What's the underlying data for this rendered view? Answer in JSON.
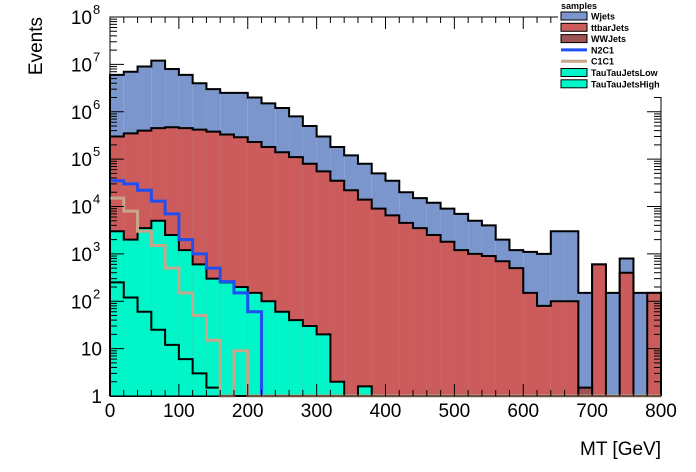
{
  "chart_data": {
    "type": "area",
    "xlabel": "MT [GeV]",
    "ylabel": "Events",
    "xlim": [
      0,
      800
    ],
    "ylim": [
      1,
      100000000
    ],
    "ylog": true,
    "x_ticks": [
      0,
      100,
      200,
      300,
      400,
      500,
      600,
      700,
      800
    ],
    "y_tick_labels": [
      {
        "v": 1,
        "base": "1",
        "exp": ""
      },
      {
        "v": 10,
        "base": "10",
        "exp": ""
      },
      {
        "v": 100,
        "base": "10",
        "exp": "2"
      },
      {
        "v": 1000,
        "base": "10",
        "exp": "3"
      },
      {
        "v": 10000,
        "base": "10",
        "exp": "4"
      },
      {
        "v": 100000,
        "base": "10",
        "exp": "5"
      },
      {
        "v": 1000000,
        "base": "10",
        "exp": "6"
      },
      {
        "v": 10000000,
        "base": "10",
        "exp": "7"
      },
      {
        "v": 100000000,
        "base": "10",
        "exp": "8"
      }
    ],
    "bin_edges": [
      0,
      20,
      40,
      60,
      80,
      100,
      120,
      140,
      160,
      180,
      200,
      220,
      240,
      260,
      280,
      300,
      320,
      340,
      360,
      380,
      400,
      420,
      440,
      460,
      480,
      500,
      520,
      540,
      560,
      580,
      600,
      620,
      640,
      660,
      680,
      700,
      720,
      740,
      760,
      780,
      800
    ],
    "stack_totals": [
      {
        "name": "Wjets",
        "color": "#7b96cc",
        "values": [
          6000000,
          7000000,
          9000000,
          12000000,
          8000000,
          6000000,
          4000000,
          3000000,
          2500000,
          2500000,
          2000000,
          1500000,
          1200000,
          800000,
          500000,
          300000,
          180000,
          120000,
          80000,
          50000,
          35000,
          20000,
          15000,
          12000,
          9000,
          7000,
          5000,
          4000,
          2000,
          1200,
          1100,
          1000,
          3000,
          3000,
          150,
          600,
          150,
          800,
          150,
          150
        ]
      },
      {
        "name": "ttbarJets",
        "color": "#cc5c5c",
        "values": [
          300000,
          350000,
          400000,
          450000,
          470000,
          450000,
          420000,
          380000,
          330000,
          290000,
          230000,
          180000,
          140000,
          110000,
          80000,
          55000,
          35000,
          22000,
          14000,
          9000,
          6500,
          4500,
          3500,
          2500,
          1800,
          1200,
          1000,
          900,
          700,
          500,
          150,
          80,
          100,
          100,
          1,
          600,
          1,
          400,
          1,
          150
        ]
      },
      {
        "name": "WWJets",
        "color": "#9e5454",
        "values": [
          0,
          0,
          0,
          0,
          0,
          0,
          0,
          0,
          0,
          0,
          0,
          0,
          0,
          0,
          0,
          0,
          0,
          0,
          0,
          0,
          0,
          0,
          0,
          0,
          0,
          0,
          0,
          0,
          0,
          0,
          0,
          0,
          0,
          0,
          1.5,
          0,
          0,
          0,
          0,
          0
        ]
      },
      {
        "name": "TauTauJetsLow",
        "color": "#00f5c8",
        "values": [
          3000,
          2000,
          3500,
          5000,
          2500,
          1200,
          600,
          300,
          250,
          200,
          150,
          100,
          60,
          40,
          30,
          20,
          2,
          1,
          1.6,
          1,
          0,
          0,
          0,
          0,
          0,
          0,
          0,
          0,
          0,
          0,
          0,
          0,
          0,
          0,
          0,
          0,
          0,
          0,
          0,
          0
        ]
      },
      {
        "name": "TauTauJetsHigh",
        "color": "#00f5c8",
        "values": [
          250,
          120,
          60,
          25,
          12,
          6,
          3,
          1.5,
          0,
          0,
          0,
          0,
          0,
          0,
          0,
          0,
          0,
          0,
          0,
          0,
          0,
          0,
          0,
          0,
          0,
          0,
          0,
          0,
          0,
          0,
          0,
          0,
          0,
          0,
          0,
          0,
          0,
          0,
          0,
          0
        ]
      }
    ],
    "lines": [
      {
        "name": "N2C1",
        "color": "#1f4ff0",
        "values": [
          35000,
          30000,
          22000,
          13000,
          7000,
          2000,
          1000,
          500,
          260,
          150,
          60,
          0.9,
          0,
          0,
          0,
          0,
          0,
          0,
          0,
          0,
          0,
          0,
          0,
          0,
          0,
          0,
          0,
          0,
          0,
          0,
          0,
          0,
          0,
          0,
          0,
          0,
          0,
          0,
          0,
          0
        ]
      },
      {
        "name": "C1C1",
        "color": "#c8a68c",
        "values": [
          15000,
          8000,
          3000,
          1500,
          500,
          150,
          50,
          15,
          0.9,
          9,
          0.9,
          0,
          0,
          0,
          0,
          0,
          0,
          0,
          0,
          0,
          0,
          0,
          0,
          0,
          0,
          0,
          0,
          0,
          0,
          0,
          0,
          0,
          0,
          0,
          0,
          0,
          0,
          0,
          0,
          0
        ]
      }
    ],
    "legend": {
      "title": "samples",
      "placement": "top-right",
      "entries": [
        {
          "label": "Wjets",
          "kind": "fill",
          "color": "#7b96cc"
        },
        {
          "label": "ttbarJets",
          "kind": "fill",
          "color": "#cc5c5c"
        },
        {
          "label": "WWJets",
          "kind": "fill",
          "color": "#9e5454"
        },
        {
          "label": "N2C1",
          "kind": "line",
          "color": "#1f4ff0"
        },
        {
          "label": "C1C1",
          "kind": "line",
          "color": "#c8a68c"
        },
        {
          "label": "TauTauJetsLow",
          "kind": "fill",
          "color": "#00f5c8"
        },
        {
          "label": "TauTauJetsHigh",
          "kind": "fill",
          "color": "#00f5c8"
        }
      ]
    }
  }
}
